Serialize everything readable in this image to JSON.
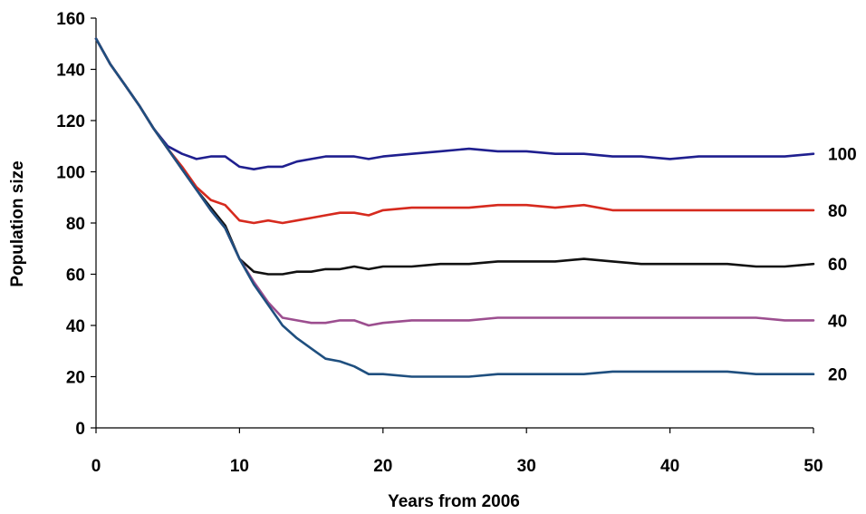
{
  "chart_data": {
    "type": "line",
    "title": "",
    "xlabel": "Years from 2006",
    "ylabel": "Population size",
    "xlim": [
      0,
      50
    ],
    "ylim": [
      0,
      160
    ],
    "xticks": [
      0,
      10,
      20,
      30,
      40,
      50
    ],
    "yticks": [
      0,
      20,
      40,
      60,
      80,
      100,
      120,
      140,
      160
    ],
    "grid": false,
    "legend": "none",
    "series": [
      {
        "name": "100",
        "color": "#1f1f8f",
        "x": [
          0,
          1,
          2,
          3,
          4,
          5,
          6,
          7,
          8,
          9,
          10,
          11,
          12,
          13,
          14,
          15,
          16,
          17,
          18,
          19,
          20,
          22,
          24,
          26,
          28,
          30,
          32,
          34,
          36,
          38,
          40,
          42,
          44,
          46,
          48,
          50
        ],
        "y": [
          152,
          142,
          134,
          126,
          117,
          110,
          107,
          105,
          106,
          106,
          102,
          101,
          102,
          102,
          104,
          105,
          106,
          106,
          106,
          105,
          106,
          107,
          108,
          109,
          108,
          108,
          107,
          107,
          106,
          106,
          105,
          106,
          106,
          106,
          106,
          107
        ]
      },
      {
        "name": "80",
        "color": "#d62a1e",
        "x": [
          0,
          1,
          2,
          3,
          4,
          5,
          6,
          7,
          8,
          9,
          10,
          11,
          12,
          13,
          14,
          15,
          16,
          17,
          18,
          19,
          20,
          22,
          24,
          26,
          28,
          30,
          32,
          34,
          36,
          38,
          40,
          42,
          44,
          46,
          48,
          50
        ],
        "y": [
          152,
          142,
          134,
          126,
          117,
          109,
          102,
          94,
          89,
          87,
          81,
          80,
          81,
          80,
          81,
          82,
          83,
          84,
          84,
          83,
          85,
          86,
          86,
          86,
          87,
          87,
          86,
          87,
          85,
          85,
          85,
          85,
          85,
          85,
          85,
          85
        ]
      },
      {
        "name": "60",
        "color": "#111111",
        "x": [
          0,
          1,
          2,
          3,
          4,
          5,
          6,
          7,
          8,
          9,
          10,
          11,
          12,
          13,
          14,
          15,
          16,
          17,
          18,
          19,
          20,
          22,
          24,
          26,
          28,
          30,
          32,
          34,
          36,
          38,
          40,
          42,
          44,
          46,
          48,
          50
        ],
        "y": [
          152,
          142,
          134,
          126,
          117,
          109,
          101,
          93,
          86,
          79,
          66,
          61,
          60,
          60,
          61,
          61,
          62,
          62,
          63,
          62,
          63,
          63,
          64,
          64,
          65,
          65,
          65,
          66,
          65,
          64,
          64,
          64,
          64,
          63,
          63,
          64
        ]
      },
      {
        "name": "40",
        "color": "#9c4e8f",
        "x": [
          0,
          1,
          2,
          3,
          4,
          5,
          6,
          7,
          8,
          9,
          10,
          11,
          12,
          13,
          14,
          15,
          16,
          17,
          18,
          19,
          20,
          22,
          24,
          26,
          28,
          30,
          32,
          34,
          36,
          38,
          40,
          42,
          44,
          46,
          48,
          50
        ],
        "y": [
          152,
          142,
          134,
          126,
          117,
          109,
          101,
          93,
          85,
          78,
          66,
          57,
          49,
          43,
          42,
          41,
          41,
          42,
          42,
          40,
          41,
          42,
          42,
          42,
          43,
          43,
          43,
          43,
          43,
          43,
          43,
          43,
          43,
          43,
          42,
          42
        ]
      },
      {
        "name": "20",
        "color": "#1f4f7f",
        "x": [
          0,
          1,
          2,
          3,
          4,
          5,
          6,
          7,
          8,
          9,
          10,
          11,
          12,
          13,
          14,
          15,
          16,
          17,
          18,
          19,
          20,
          22,
          24,
          26,
          28,
          30,
          32,
          34,
          36,
          38,
          40,
          42,
          44,
          46,
          48,
          50
        ],
        "y": [
          152,
          142,
          134,
          126,
          117,
          109,
          101,
          93,
          85,
          78,
          66,
          56,
          48,
          40,
          35,
          31,
          27,
          26,
          24,
          21,
          21,
          20,
          20,
          20,
          21,
          21,
          21,
          21,
          22,
          22,
          22,
          22,
          22,
          21,
          21,
          21
        ]
      }
    ]
  }
}
